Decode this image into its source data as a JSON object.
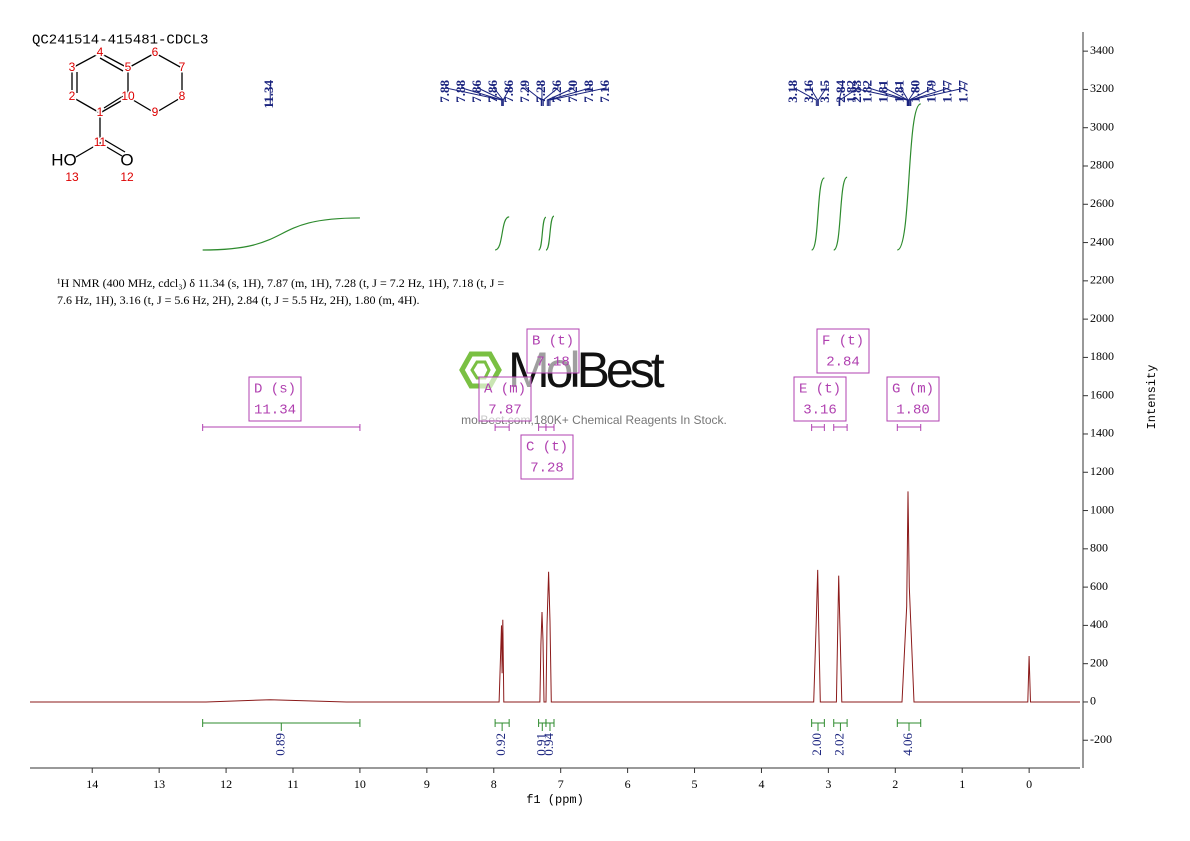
{
  "chart_data": {
    "type": "line",
    "title": "QC241514-415481-CDCL3",
    "xlabel": "f1 (ppm)",
    "ylabel": "Intensity",
    "description": [
      "¹H NMR (400 MHz, cdcl₃) δ 11.34 (s, 1H), 7.87 (m, 1H), 7.28 (t, J = 7.2 Hz, 1H), 7.18 (t, J =",
      "7.6 Hz, 1H), 3.16 (t, J = 5.6 Hz, 2H), 2.84 (t, J = 5.5 Hz, 2H), 1.80 (m, 4H)."
    ],
    "watermark": [
      "MolBest",
      "molBest.com,180K+ Chemical Reagents In Stock."
    ],
    "structure": {
      "atom_numbers": [
        "1",
        "2",
        "3",
        "4",
        "5",
        "6",
        "7",
        "8",
        "9",
        "10",
        "11",
        "12",
        "13"
      ],
      "atom_labels": [
        "HO",
        "O"
      ]
    },
    "color": "#8b1a1a",
    "x": [
      14.93,
      12.3,
      11.34,
      10.2,
      7.92,
      7.885,
      7.875,
      7.865,
      7.85,
      7.31,
      7.295,
      7.28,
      7.265,
      7.25,
      7.22,
      7.205,
      7.18,
      7.16,
      7.14,
      3.22,
      3.18,
      3.16,
      3.145,
      3.12,
      2.88,
      2.845,
      2.83,
      2.8,
      1.9,
      1.83,
      1.81,
      1.79,
      1.72,
      0.02,
      0,
      -0.02,
      -0.76
    ],
    "values": [
      0,
      0,
      12,
      0,
      0,
      400,
      150,
      430,
      0,
      0,
      300,
      470,
      320,
      0,
      0,
      400,
      680,
      420,
      0,
      0,
      430,
      690,
      400,
      0,
      0,
      660,
      420,
      0,
      0,
      500,
      1100,
      600,
      0,
      0,
      240,
      0,
      0
    ],
    "xlim": [
      14.93,
      -0.76
    ],
    "xticks": [
      14,
      13,
      12,
      11,
      10,
      9,
      8,
      7,
      6,
      5,
      4,
      3,
      2,
      1,
      0
    ],
    "ylim": [
      -345,
      3500
    ],
    "yticks": [
      -200,
      0,
      200,
      400,
      600,
      800,
      1000,
      1200,
      1400,
      1600,
      1800,
      2000,
      2200,
      2400,
      2600,
      2800,
      3000,
      3200,
      3400
    ],
    "peaks": [
      11.34,
      7.88,
      7.88,
      7.86,
      7.86,
      7.86,
      7.29,
      7.28,
      7.26,
      {
        "value": 7.2,
        "label": "7.20"
      },
      7.18,
      7.16,
      3.18,
      3.16,
      3.15,
      2.84,
      2.83,
      1.82,
      1.82,
      1.81,
      1.81,
      {
        "value": 1.8,
        "label": "1.80"
      },
      1.79,
      1.77,
      1.77
    ],
    "integrals": [
      {
        "from": 12.35,
        "to": 10.0,
        "value": 0.89
      },
      {
        "from": 7.98,
        "to": 7.77,
        "value": 0.92
      },
      {
        "from": 7.33,
        "to": 7.22,
        "value": 0.91
      },
      {
        "from": 7.22,
        "to": 7.1,
        "value": 0.94
      },
      {
        "from": 3.25,
        "to": 3.06,
        "value": {
          "value": 2,
          "label": "2.00"
        }
      },
      {
        "from": 2.92,
        "to": 2.72,
        "value": 2.02
      },
      {
        "from": 1.97,
        "to": 1.62,
        "value": 4.06
      }
    ],
    "multiplets": [
      {
        "name": "D (s)",
        "shift": 11.34
      },
      {
        "name": "A (m)",
        "shift": 7.87
      },
      {
        "name": "C (t)",
        "shift": 7.28
      },
      {
        "name": "B (t)",
        "shift": 7.18
      },
      {
        "name": "E (t)",
        "shift": 3.16
      },
      {
        "name": "F (t)",
        "shift": 2.84
      },
      {
        "name": "G (m)",
        "shift": {
          "value": 1.8,
          "label": "1.80"
        }
      }
    ]
  }
}
